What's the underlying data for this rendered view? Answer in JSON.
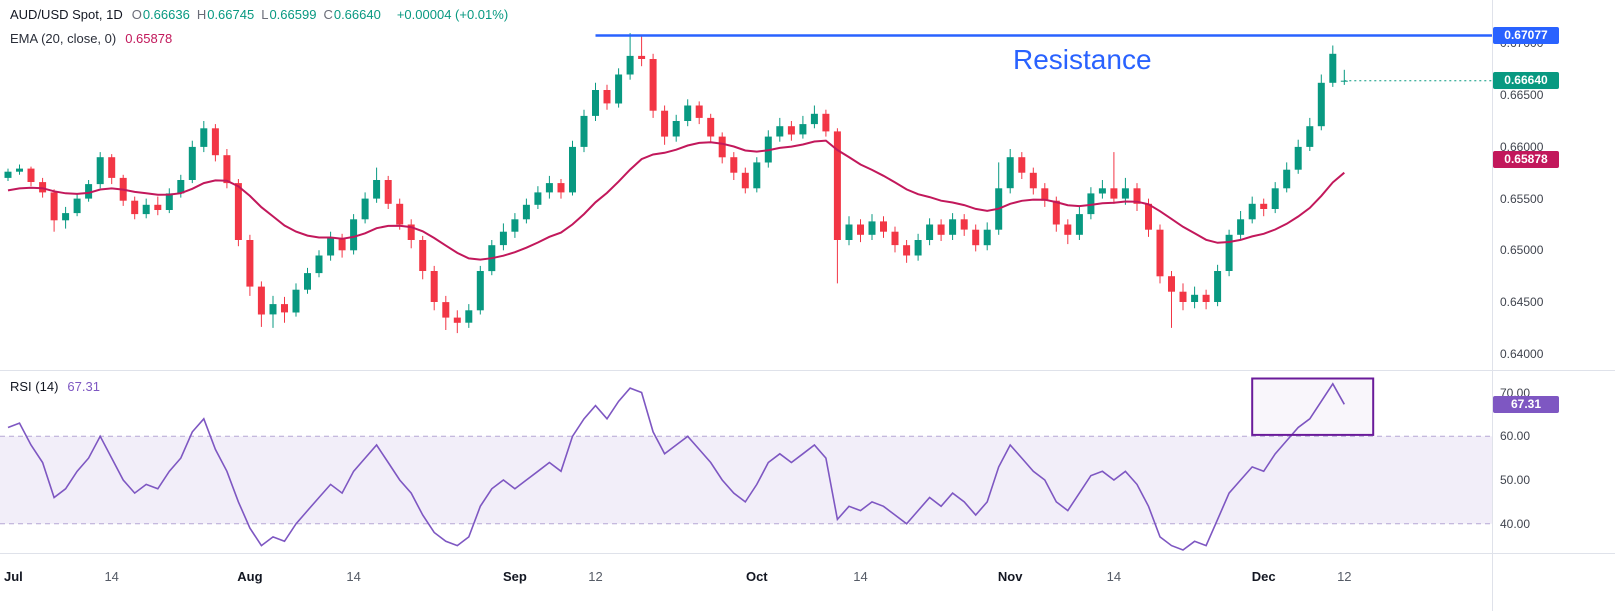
{
  "header": {
    "symbol": "AUD/USD Spot, 1D",
    "ohlc": [
      {
        "k": "O",
        "v": "0.66636"
      },
      {
        "k": "H",
        "v": "0.66745"
      },
      {
        "k": "L",
        "v": "0.66599"
      },
      {
        "k": "C",
        "v": "0.66640"
      }
    ],
    "change": "+0.00004 (+0.01%)",
    "ema_label": "EMA (20, close, 0)",
    "ema_value": "0.65878"
  },
  "colors": {
    "up": "#089981",
    "down": "#f23645",
    "ema": "#c2185b",
    "resistance": "#2962ff",
    "rsi": "#7e57c2",
    "rsi_band_fill": "rgba(126,87,194,0.10)",
    "rsi_dash": "#b6a7d6",
    "grid": "#dfe2ea",
    "annotation_box": "#6a1b9a"
  },
  "annotations": {
    "resistance": {
      "label": "Resistance",
      "value": 0.67077,
      "from_index": 51,
      "badge": "0.67077"
    },
    "close_line": {
      "value": 0.6664,
      "badge": "0.66640"
    },
    "ema_badge": {
      "value": 0.65878,
      "badge": "0.65878"
    },
    "rsi_box": {
      "i0": 108,
      "i1": 118.5,
      "r0": 60.3,
      "r1": 73.2
    }
  },
  "price_axis": {
    "labels": [
      {
        "text": "0.67000",
        "value": 0.67
      },
      {
        "text": "0.66500",
        "value": 0.665
      },
      {
        "text": "0.66000",
        "value": 0.66
      },
      {
        "text": "0.65500",
        "value": 0.655
      },
      {
        "text": "0.65000",
        "value": 0.65
      },
      {
        "text": "0.64500",
        "value": 0.645
      },
      {
        "text": "0.64000",
        "value": 0.64
      }
    ]
  },
  "rsi_pane": {
    "label": "RSI (14)",
    "value": "67.31",
    "badge": "67.31",
    "band": [
      40,
      60
    ],
    "levels": [
      {
        "text": "70.00",
        "value": 70
      },
      {
        "text": "60.00",
        "value": 60
      },
      {
        "text": "50.00",
        "value": 50
      },
      {
        "text": "40.00",
        "value": 40
      }
    ]
  },
  "time_axis": {
    "ticks": [
      {
        "index": 0,
        "label": "Jul",
        "major": true
      },
      {
        "index": 9,
        "label": "14",
        "major": false
      },
      {
        "index": 21,
        "label": "Aug",
        "major": true
      },
      {
        "index": 30,
        "label": "14",
        "major": false
      },
      {
        "index": 44,
        "label": "Sep",
        "major": true
      },
      {
        "index": 51,
        "label": "12",
        "major": false
      },
      {
        "index": 65,
        "label": "Oct",
        "major": true
      },
      {
        "index": 74,
        "label": "14",
        "major": false
      },
      {
        "index": 87,
        "label": "Nov",
        "major": true
      },
      {
        "index": 96,
        "label": "14",
        "major": false
      },
      {
        "index": 109,
        "label": "Dec",
        "major": true
      },
      {
        "index": 116,
        "label": "12",
        "major": false
      }
    ]
  },
  "chart_data": {
    "type": "candlestick",
    "title": "AUD/USD Spot, 1D",
    "ylim": [
      0.6394,
      0.6742
    ],
    "rsi_ylim": [
      34,
      74
    ],
    "ema_period": 20,
    "rsi_period": 14,
    "ohlc": [
      [
        0.657,
        0.6579,
        0.6567,
        0.6576
      ],
      [
        0.6576,
        0.6583,
        0.6573,
        0.6579
      ],
      [
        0.6579,
        0.6581,
        0.6562,
        0.6566
      ],
      [
        0.6566,
        0.657,
        0.6551,
        0.6556
      ],
      [
        0.6556,
        0.6559,
        0.6518,
        0.6529
      ],
      [
        0.6529,
        0.6542,
        0.6521,
        0.6536
      ],
      [
        0.6536,
        0.6554,
        0.6533,
        0.655
      ],
      [
        0.655,
        0.6568,
        0.6547,
        0.6564
      ],
      [
        0.6564,
        0.6595,
        0.656,
        0.659
      ],
      [
        0.659,
        0.6593,
        0.6564,
        0.657
      ],
      [
        0.657,
        0.6573,
        0.6543,
        0.6548
      ],
      [
        0.6548,
        0.6552,
        0.653,
        0.6535
      ],
      [
        0.6535,
        0.655,
        0.6531,
        0.6544
      ],
      [
        0.6544,
        0.6552,
        0.6534,
        0.6539
      ],
      [
        0.6539,
        0.656,
        0.6536,
        0.6555
      ],
      [
        0.6555,
        0.6573,
        0.6551,
        0.6568
      ],
      [
        0.6568,
        0.6606,
        0.6565,
        0.66
      ],
      [
        0.66,
        0.6625,
        0.6595,
        0.6618
      ],
      [
        0.6618,
        0.6622,
        0.6586,
        0.6592
      ],
      [
        0.6592,
        0.6598,
        0.656,
        0.6565
      ],
      [
        0.6565,
        0.6569,
        0.6504,
        0.651
      ],
      [
        0.651,
        0.6515,
        0.6456,
        0.6465
      ],
      [
        0.6465,
        0.647,
        0.6426,
        0.6438
      ],
      [
        0.6438,
        0.6456,
        0.6425,
        0.6448
      ],
      [
        0.6448,
        0.6455,
        0.643,
        0.644
      ],
      [
        0.644,
        0.6468,
        0.6436,
        0.6462
      ],
      [
        0.6462,
        0.6483,
        0.6458,
        0.6478
      ],
      [
        0.6478,
        0.65,
        0.6474,
        0.6495
      ],
      [
        0.6495,
        0.6518,
        0.649,
        0.6512
      ],
      [
        0.6512,
        0.6516,
        0.6493,
        0.65
      ],
      [
        0.65,
        0.6535,
        0.6496,
        0.653
      ],
      [
        0.653,
        0.6556,
        0.6526,
        0.655
      ],
      [
        0.655,
        0.658,
        0.6546,
        0.6568
      ],
      [
        0.6568,
        0.6572,
        0.654,
        0.6545
      ],
      [
        0.6545,
        0.655,
        0.652,
        0.6525
      ],
      [
        0.6525,
        0.653,
        0.6502,
        0.651
      ],
      [
        0.651,
        0.6514,
        0.6472,
        0.648
      ],
      [
        0.648,
        0.6485,
        0.6442,
        0.645
      ],
      [
        0.645,
        0.6456,
        0.6423,
        0.6435
      ],
      [
        0.6435,
        0.6442,
        0.642,
        0.643
      ],
      [
        0.643,
        0.6448,
        0.6425,
        0.6442
      ],
      [
        0.6442,
        0.6485,
        0.6438,
        0.648
      ],
      [
        0.648,
        0.651,
        0.6476,
        0.6505
      ],
      [
        0.6505,
        0.6526,
        0.65,
        0.6518
      ],
      [
        0.6518,
        0.6536,
        0.6512,
        0.653
      ],
      [
        0.653,
        0.655,
        0.6526,
        0.6544
      ],
      [
        0.6544,
        0.6562,
        0.654,
        0.6556
      ],
      [
        0.6556,
        0.6572,
        0.655,
        0.6565
      ],
      [
        0.6565,
        0.6569,
        0.655,
        0.6556
      ],
      [
        0.6556,
        0.6606,
        0.6553,
        0.66
      ],
      [
        0.66,
        0.6636,
        0.6595,
        0.663
      ],
      [
        0.663,
        0.6662,
        0.6625,
        0.6655
      ],
      [
        0.6655,
        0.666,
        0.6636,
        0.6642
      ],
      [
        0.6642,
        0.6676,
        0.6638,
        0.667
      ],
      [
        0.667,
        0.671,
        0.6665,
        0.6688
      ],
      [
        0.6688,
        0.6708,
        0.6678,
        0.6685
      ],
      [
        0.6685,
        0.669,
        0.6628,
        0.6635
      ],
      [
        0.6635,
        0.664,
        0.6602,
        0.661
      ],
      [
        0.661,
        0.6631,
        0.6605,
        0.6625
      ],
      [
        0.6625,
        0.6646,
        0.662,
        0.664
      ],
      [
        0.664,
        0.6644,
        0.6622,
        0.6628
      ],
      [
        0.6628,
        0.6632,
        0.6604,
        0.661
      ],
      [
        0.661,
        0.6614,
        0.6584,
        0.659
      ],
      [
        0.659,
        0.6595,
        0.6568,
        0.6575
      ],
      [
        0.6575,
        0.658,
        0.6555,
        0.656
      ],
      [
        0.656,
        0.659,
        0.6556,
        0.6585
      ],
      [
        0.6585,
        0.6616,
        0.658,
        0.661
      ],
      [
        0.661,
        0.6628,
        0.6605,
        0.662
      ],
      [
        0.662,
        0.6625,
        0.6606,
        0.6612
      ],
      [
        0.6612,
        0.663,
        0.6608,
        0.6622
      ],
      [
        0.6622,
        0.664,
        0.6618,
        0.6632
      ],
      [
        0.6632,
        0.6636,
        0.661,
        0.6615
      ],
      [
        0.6615,
        0.6618,
        0.6468,
        0.651
      ],
      [
        0.651,
        0.6533,
        0.6505,
        0.6525
      ],
      [
        0.6525,
        0.653,
        0.6508,
        0.6515
      ],
      [
        0.6515,
        0.6535,
        0.651,
        0.6528
      ],
      [
        0.6528,
        0.6533,
        0.6512,
        0.6518
      ],
      [
        0.6518,
        0.6523,
        0.6498,
        0.6505
      ],
      [
        0.6505,
        0.651,
        0.6488,
        0.6495
      ],
      [
        0.6495,
        0.6516,
        0.649,
        0.651
      ],
      [
        0.651,
        0.6531,
        0.6505,
        0.6525
      ],
      [
        0.6525,
        0.653,
        0.6509,
        0.6515
      ],
      [
        0.6515,
        0.6536,
        0.651,
        0.653
      ],
      [
        0.653,
        0.6535,
        0.6514,
        0.652
      ],
      [
        0.652,
        0.6525,
        0.6499,
        0.6505
      ],
      [
        0.6505,
        0.6527,
        0.65,
        0.652
      ],
      [
        0.652,
        0.6585,
        0.6515,
        0.656
      ],
      [
        0.656,
        0.6598,
        0.6555,
        0.659
      ],
      [
        0.659,
        0.6595,
        0.6569,
        0.6575
      ],
      [
        0.6575,
        0.658,
        0.6554,
        0.656
      ],
      [
        0.656,
        0.6565,
        0.6542,
        0.6548
      ],
      [
        0.6548,
        0.6552,
        0.6518,
        0.6525
      ],
      [
        0.6525,
        0.653,
        0.6506,
        0.6515
      ],
      [
        0.6515,
        0.6542,
        0.651,
        0.6535
      ],
      [
        0.6535,
        0.6561,
        0.653,
        0.6555
      ],
      [
        0.6555,
        0.6568,
        0.655,
        0.656
      ],
      [
        0.656,
        0.6595,
        0.6545,
        0.655
      ],
      [
        0.655,
        0.657,
        0.6544,
        0.656
      ],
      [
        0.656,
        0.6565,
        0.6538,
        0.6545
      ],
      [
        0.6545,
        0.655,
        0.6513,
        0.652
      ],
      [
        0.652,
        0.6525,
        0.6468,
        0.6475
      ],
      [
        0.6475,
        0.648,
        0.6425,
        0.646
      ],
      [
        0.646,
        0.6468,
        0.6442,
        0.645
      ],
      [
        0.645,
        0.6465,
        0.6444,
        0.6457
      ],
      [
        0.6457,
        0.6462,
        0.6443,
        0.645
      ],
      [
        0.645,
        0.6486,
        0.6446,
        0.648
      ],
      [
        0.648,
        0.652,
        0.6475,
        0.6515
      ],
      [
        0.6515,
        0.6538,
        0.651,
        0.653
      ],
      [
        0.653,
        0.6552,
        0.6526,
        0.6545
      ],
      [
        0.6545,
        0.655,
        0.6533,
        0.654
      ],
      [
        0.654,
        0.6566,
        0.6536,
        0.656
      ],
      [
        0.656,
        0.6585,
        0.6556,
        0.6578
      ],
      [
        0.6578,
        0.6607,
        0.6574,
        0.66
      ],
      [
        0.66,
        0.6628,
        0.6596,
        0.662
      ],
      [
        0.662,
        0.667,
        0.6616,
        0.6662
      ],
      [
        0.6662,
        0.6698,
        0.6658,
        0.669
      ],
      [
        0.66636,
        0.66745,
        0.66599,
        0.6664
      ]
    ],
    "rsi": [
      62,
      63,
      58,
      54,
      46,
      48,
      52,
      55,
      60,
      55,
      50,
      47,
      49,
      48,
      52,
      55,
      61,
      64,
      57,
      52,
      45,
      39,
      35,
      37,
      36,
      40,
      43,
      46,
      49,
      47,
      52,
      55,
      58,
      54,
      50,
      47,
      42,
      38,
      36,
      35,
      37,
      44,
      48,
      50,
      48,
      50,
      52,
      54,
      52,
      60,
      64,
      67,
      64,
      68,
      71,
      70,
      61,
      56,
      58,
      60,
      57,
      54,
      50,
      47,
      45,
      49,
      54,
      56,
      54,
      56,
      58,
      55,
      41,
      44,
      43,
      45,
      44,
      42,
      40,
      43,
      46,
      44,
      47,
      45,
      42,
      45,
      53,
      58,
      55,
      52,
      50,
      45,
      43,
      47,
      51,
      52,
      50,
      52,
      49,
      44,
      37,
      35,
      34,
      36,
      35,
      41,
      47,
      50,
      53,
      52,
      56,
      59,
      62,
      64,
      68,
      72,
      67.31
    ]
  }
}
